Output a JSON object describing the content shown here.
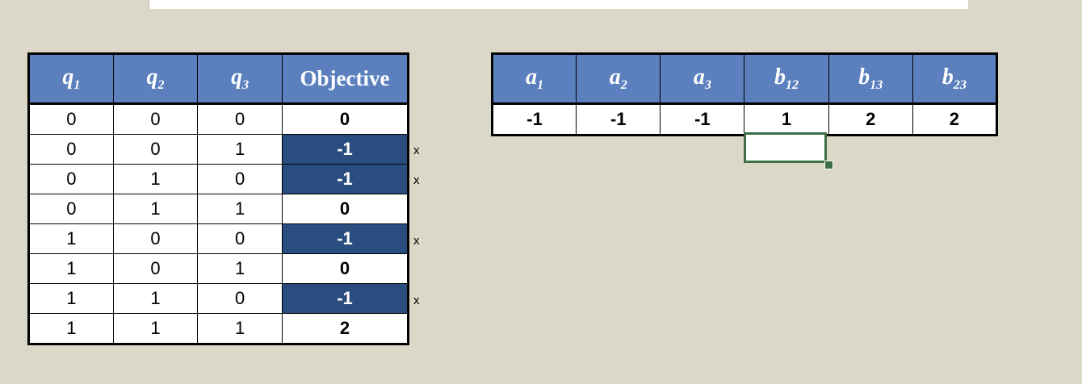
{
  "left_table": {
    "headers": [
      {
        "var": "q",
        "sub": "1"
      },
      {
        "var": "q",
        "sub": "2"
      },
      {
        "var": "q",
        "sub": "3"
      }
    ],
    "objective_header": "Objective",
    "rows": [
      {
        "q1": "0",
        "q2": "0",
        "q3": "0",
        "objective": "0",
        "highlighted": false,
        "mark": ""
      },
      {
        "q1": "0",
        "q2": "0",
        "q3": "1",
        "objective": "-1",
        "highlighted": true,
        "mark": "x"
      },
      {
        "q1": "0",
        "q2": "1",
        "q3": "0",
        "objective": "-1",
        "highlighted": true,
        "mark": "x"
      },
      {
        "q1": "0",
        "q2": "1",
        "q3": "1",
        "objective": "0",
        "highlighted": false,
        "mark": ""
      },
      {
        "q1": "1",
        "q2": "0",
        "q3": "0",
        "objective": "-1",
        "highlighted": true,
        "mark": "x"
      },
      {
        "q1": "1",
        "q2": "0",
        "q3": "1",
        "objective": "0",
        "highlighted": false,
        "mark": ""
      },
      {
        "q1": "1",
        "q2": "1",
        "q3": "0",
        "objective": "-1",
        "highlighted": true,
        "mark": "x"
      },
      {
        "q1": "1",
        "q2": "1",
        "q3": "1",
        "objective": "2",
        "highlighted": false,
        "mark": ""
      }
    ]
  },
  "coef_table": {
    "headers": [
      {
        "var": "a",
        "sub": "1"
      },
      {
        "var": "a",
        "sub": "2"
      },
      {
        "var": "a",
        "sub": "3"
      },
      {
        "var": "b",
        "sub": "12"
      },
      {
        "var": "b",
        "sub": "13"
      },
      {
        "var": "b",
        "sub": "23"
      }
    ],
    "values": [
      "-1",
      "-1",
      "-1",
      "1",
      "2",
      "2"
    ]
  },
  "colors": {
    "header_bg": "#5b80bd",
    "highlight_bg": "#2a4d80",
    "sheet_bg": "#dcd8c7",
    "selection": "#3c6f46"
  }
}
